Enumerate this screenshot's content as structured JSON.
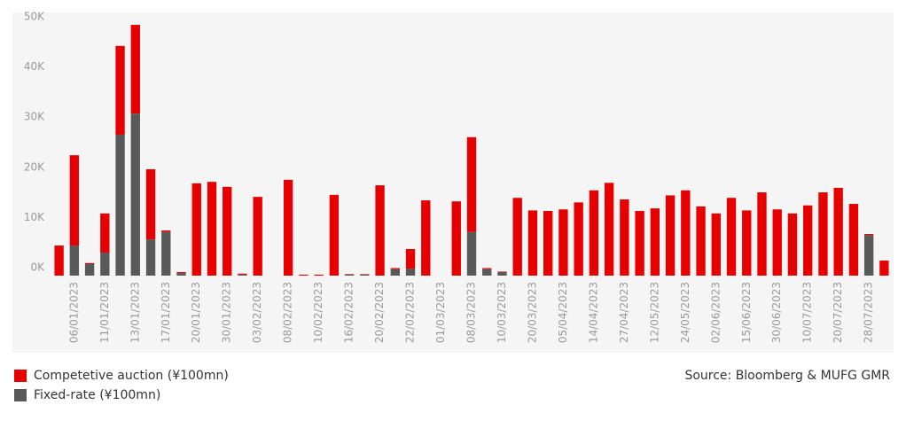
{
  "chart_data": {
    "type": "stacked-bar",
    "categories": [
      null,
      "06/01/2023",
      null,
      "11/01/2023",
      null,
      "13/01/2023",
      null,
      "17/01/2023",
      null,
      "20/01/2023",
      null,
      "30/01/2023",
      null,
      "03/02/2023",
      null,
      "08/02/2023",
      null,
      "10/02/2023",
      null,
      "16/02/2023",
      null,
      "20/02/2023",
      null,
      "22/02/2023",
      null,
      "01/03/2023",
      null,
      "08/03/2023",
      null,
      "10/03/2023",
      null,
      "20/03/2023",
      null,
      "05/04/2023",
      null,
      "14/04/2023",
      null,
      "27/04/2023",
      null,
      "12/05/2023",
      null,
      "24/05/2023",
      null,
      "02/06/2023",
      null,
      "15/06/2023",
      null,
      "30/06/2023",
      null,
      "10/07/2023",
      null,
      "20/07/2023",
      null,
      "28/07/2023",
      null
    ],
    "series": [
      {
        "name": "Competetive auction (¥100mn)",
        "color": "#e60000",
        "values": [
          6000,
          18000,
          200,
          7800,
          17700,
          17700,
          14000,
          300,
          200,
          18400,
          18700,
          17700,
          200,
          15700,
          0,
          19100,
          200,
          200,
          16100,
          100,
          100,
          18000,
          200,
          3900,
          15000,
          0,
          14800,
          18900,
          200,
          100,
          15500,
          13000,
          12900,
          13200,
          14600,
          17000,
          18500,
          15200,
          12900,
          13400,
          16000,
          17000,
          13800,
          12400,
          15500,
          13000,
          16600,
          13200,
          12400,
          14000,
          16600,
          17500,
          14300,
          200,
          3000
        ]
      },
      {
        "name": "Fixed-rate (¥100mn)",
        "color": "#595959",
        "values": [
          0,
          6000,
          2300,
          4600,
          28100,
          32300,
          7200,
          8700,
          500,
          0,
          0,
          0,
          200,
          0,
          0,
          0,
          0,
          0,
          0,
          200,
          200,
          0,
          1300,
          1400,
          0,
          0,
          0,
          8700,
          1300,
          700,
          0,
          0,
          0,
          0,
          0,
          0,
          0,
          0,
          0,
          0,
          0,
          0,
          0,
          0,
          0,
          0,
          0,
          0,
          0,
          0,
          0,
          0,
          0,
          8100,
          0
        ]
      }
    ],
    "ylim": [
      0,
      50000
    ],
    "yticks": [
      {
        "value": 0,
        "label": "0K"
      },
      {
        "value": 10000,
        "label": "10K"
      },
      {
        "value": 20000,
        "label": "20K"
      },
      {
        "value": 30000,
        "label": "30K"
      },
      {
        "value": 40000,
        "label": "40K"
      },
      {
        "value": 50000,
        "label": "50K"
      }
    ],
    "source": "Source: Bloomberg & MUFG GMR"
  }
}
